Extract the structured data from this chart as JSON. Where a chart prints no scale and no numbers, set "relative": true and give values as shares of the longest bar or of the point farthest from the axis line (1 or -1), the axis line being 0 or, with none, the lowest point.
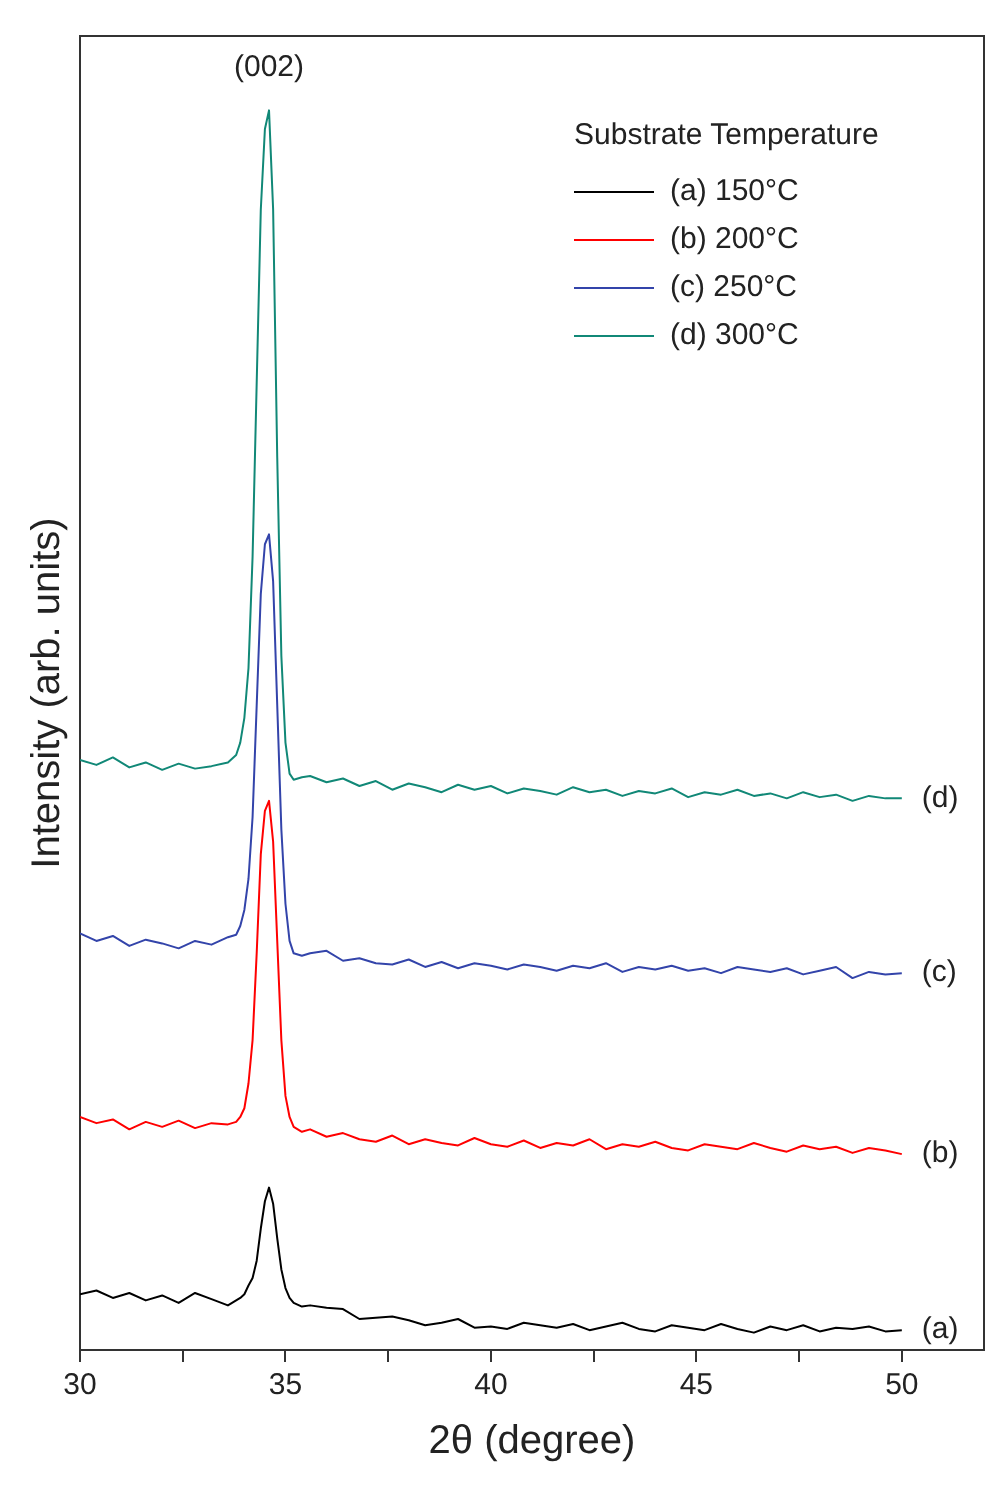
{
  "chart_data": {
    "type": "line",
    "relative": true,
    "xlabel": "2θ (degree)",
    "ylabel": "Intensity (arb. units)",
    "legend_title": "Substrate Temperature",
    "legend": "top right",
    "grid": false,
    "marker": "none",
    "line_style": "solid",
    "xlim": [
      30,
      52
    ],
    "xticks": [
      30,
      {
        "value": 32.5,
        "label": null
      },
      35,
      {
        "value": 37.5,
        "label": null
      },
      40,
      {
        "value": 42.5,
        "label": null
      },
      45,
      {
        "value": 47.5,
        "label": null
      },
      50
    ],
    "x": [
      30,
      30.4,
      30.8,
      31.2,
      31.6,
      32,
      32.4,
      32.8,
      33.2,
      33.6,
      33.8,
      33.9,
      34,
      34.1,
      34.2,
      34.3,
      34.4,
      34.5,
      34.6,
      34.7,
      34.8,
      34.9,
      35,
      35.1,
      35.2,
      35.4,
      35.6,
      36,
      36.4,
      36.8,
      37.2,
      37.6,
      38,
      38.4,
      38.8,
      39.2,
      39.6,
      40,
      40.4,
      40.8,
      41.2,
      41.6,
      42,
      42.4,
      42.8,
      43.2,
      43.6,
      44,
      44.4,
      44.8,
      45.2,
      45.6,
      46,
      46.4,
      46.8,
      47.2,
      47.6,
      48,
      48.4,
      48.8,
      49.2,
      49.6,
      50
    ],
    "series": [
      {
        "name": "(a) 150°C",
        "color": "#000000",
        "values": [
          0.045,
          0.048,
          0.042,
          0.046,
          0.04,
          0.044,
          0.038,
          0.046,
          0.041,
          0.036,
          0.04,
          0.042,
          0.045,
          0.052,
          0.058,
          0.072,
          0.098,
          0.12,
          0.131,
          0.118,
          0.09,
          0.065,
          0.05,
          0.042,
          0.038,
          0.035,
          0.036,
          0.034,
          0.033,
          0.025,
          0.026,
          0.027,
          0.024,
          0.02,
          0.022,
          0.025,
          0.018,
          0.019,
          0.017,
          0.022,
          0.02,
          0.018,
          0.021,
          0.016,
          0.019,
          0.022,
          0.017,
          0.015,
          0.02,
          0.018,
          0.016,
          0.021,
          0.017,
          0.014,
          0.019,
          0.016,
          0.02,
          0.015,
          0.018,
          0.017,
          0.019,
          0.015,
          0.016
        ]
      },
      {
        "name": "(b) 200°C",
        "color": "#ff0000",
        "values": [
          0.188,
          0.183,
          0.186,
          0.178,
          0.184,
          0.18,
          0.185,
          0.179,
          0.183,
          0.182,
          0.184,
          0.188,
          0.195,
          0.215,
          0.25,
          0.32,
          0.4,
          0.435,
          0.443,
          0.41,
          0.33,
          0.25,
          0.205,
          0.188,
          0.18,
          0.176,
          0.178,
          0.172,
          0.175,
          0.17,
          0.168,
          0.173,
          0.166,
          0.17,
          0.167,
          0.165,
          0.171,
          0.166,
          0.164,
          0.169,
          0.163,
          0.167,
          0.165,
          0.17,
          0.162,
          0.166,
          0.164,
          0.168,
          0.163,
          0.161,
          0.166,
          0.164,
          0.162,
          0.167,
          0.163,
          0.16,
          0.165,
          0.162,
          0.164,
          0.159,
          0.163,
          0.161,
          0.158
        ]
      },
      {
        "name": "(c) 250°C",
        "color": "#3344aa",
        "values": [
          0.336,
          0.33,
          0.334,
          0.326,
          0.331,
          0.328,
          0.324,
          0.33,
          0.327,
          0.333,
          0.335,
          0.342,
          0.355,
          0.38,
          0.43,
          0.52,
          0.61,
          0.65,
          0.658,
          0.62,
          0.52,
          0.42,
          0.36,
          0.33,
          0.32,
          0.318,
          0.32,
          0.322,
          0.314,
          0.316,
          0.312,
          0.311,
          0.315,
          0.309,
          0.313,
          0.308,
          0.312,
          0.31,
          0.307,
          0.311,
          0.309,
          0.306,
          0.31,
          0.308,
          0.312,
          0.305,
          0.309,
          0.307,
          0.31,
          0.306,
          0.308,
          0.304,
          0.309,
          0.307,
          0.305,
          0.308,
          0.303,
          0.306,
          0.309,
          0.3,
          0.305,
          0.303,
          0.304
        ]
      },
      {
        "name": "(d) 300°C",
        "color": "#118877",
        "values": [
          0.476,
          0.472,
          0.478,
          0.47,
          0.474,
          0.468,
          0.473,
          0.469,
          0.471,
          0.474,
          0.48,
          0.49,
          0.51,
          0.55,
          0.64,
          0.78,
          0.92,
          0.985,
          1,
          0.92,
          0.72,
          0.56,
          0.49,
          0.465,
          0.46,
          0.462,
          0.463,
          0.458,
          0.461,
          0.455,
          0.459,
          0.452,
          0.457,
          0.454,
          0.45,
          0.456,
          0.452,
          0.455,
          0.449,
          0.453,
          0.451,
          0.448,
          0.454,
          0.45,
          0.452,
          0.447,
          0.451,
          0.449,
          0.453,
          0.446,
          0.45,
          0.448,
          0.452,
          0.447,
          0.449,
          0.445,
          0.45,
          0.446,
          0.448,
          0.443,
          0.447,
          0.445,
          0.445
        ]
      }
    ],
    "annotations": [
      {
        "text": "(002)",
        "x": 34.6,
        "y": 1
      },
      "(a)",
      "(b)",
      "(c)",
      "(d)"
    ]
  }
}
